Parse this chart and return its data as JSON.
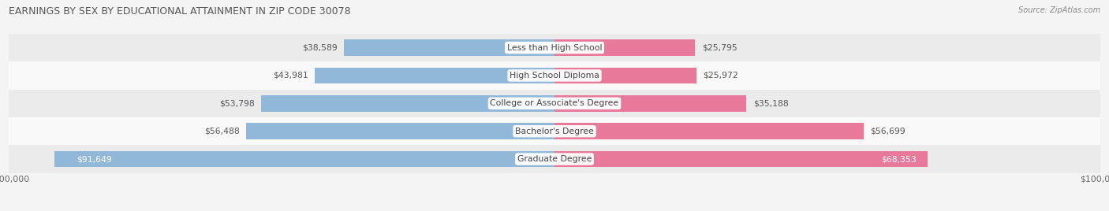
{
  "title": "EARNINGS BY SEX BY EDUCATIONAL ATTAINMENT IN ZIP CODE 30078",
  "source": "Source: ZipAtlas.com",
  "categories": [
    "Less than High School",
    "High School Diploma",
    "College or Associate's Degree",
    "Bachelor's Degree",
    "Graduate Degree"
  ],
  "male_values": [
    38589,
    43981,
    53798,
    56488,
    91649
  ],
  "female_values": [
    25795,
    25972,
    35188,
    56699,
    68353
  ],
  "male_color": "#92b8d9",
  "female_color": "#e8799a",
  "max_value": 100000,
  "bar_height": 0.58,
  "bg_color": "#f4f4f4",
  "row_bg_even": "#ebebeb",
  "row_bg_odd": "#f9f9f9",
  "title_fontsize": 9.0,
  "label_fontsize": 7.8,
  "axis_label_fontsize": 7.8,
  "source_fontsize": 7.0
}
